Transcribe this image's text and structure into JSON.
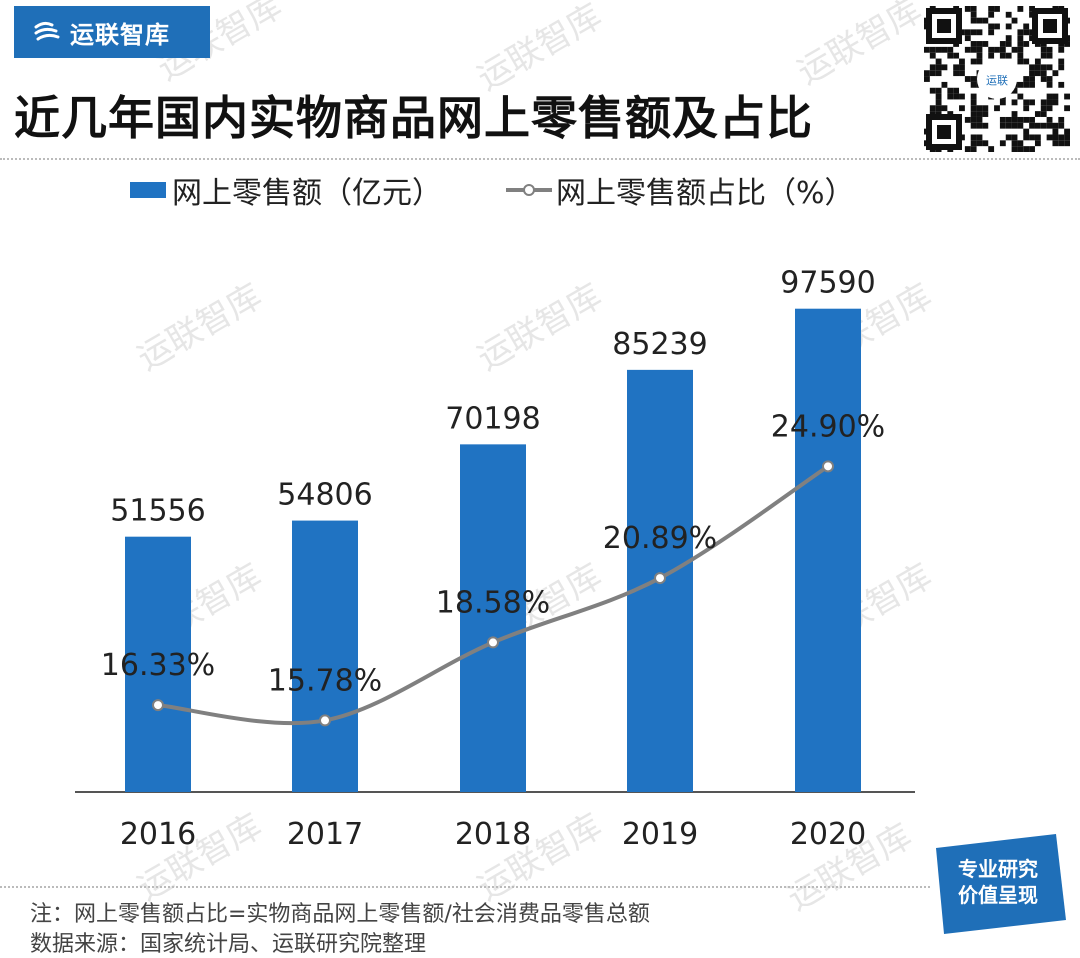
{
  "brand": {
    "name": "运联智库"
  },
  "title": "近几年国内实物商品网上零售额及占比",
  "qr": {
    "label": "运联"
  },
  "legend": {
    "bar_label": "网上零售额（亿元）",
    "line_label": "网上零售额占比（%）"
  },
  "chart_data": {
    "type": "bar",
    "categories": [
      "2016",
      "2017",
      "2018",
      "2019",
      "2020"
    ],
    "series": [
      {
        "name": "网上零售额（亿元）",
        "type": "bar",
        "values": [
          51556,
          54806,
          70198,
          85239,
          97590
        ],
        "labels": [
          "51556",
          "54806",
          "70198",
          "85239",
          "97590"
        ]
      },
      {
        "name": "网上零售额占比（%）",
        "type": "line",
        "values": [
          16.33,
          15.78,
          18.58,
          20.89,
          24.9
        ],
        "labels": [
          "16.33%",
          "15.78%",
          "18.58%",
          "20.89%",
          "24.90%"
        ]
      }
    ],
    "bar_ylim": [
      0,
      105000
    ],
    "line_ylim": [
      0,
      28
    ],
    "grid": false,
    "legend_position": "top",
    "colors": {
      "bar": "#2073c2",
      "line": "#808080",
      "axis": "#555555"
    }
  },
  "footer": {
    "note": "注：网上零售额占比=实物商品网上零售额/社会消费品零售总额",
    "source": "数据来源：国家统计局、运联研究院整理"
  },
  "badge": {
    "line1": "专业研究",
    "line2": "价值呈现"
  },
  "watermark": "运联智库"
}
